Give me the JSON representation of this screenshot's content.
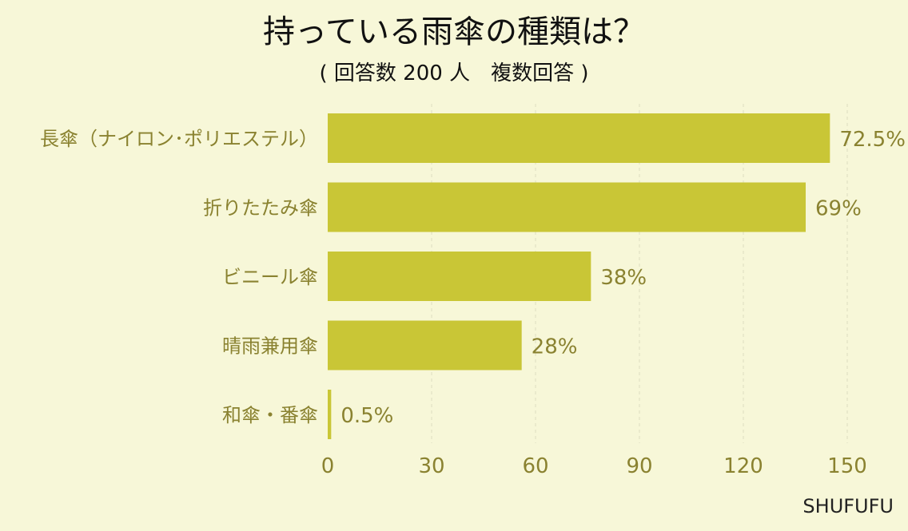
{
  "title": "持っている雨傘の種類は？",
  "subtitle": "( 回答数 200 人　複数回答 )",
  "source": "SHUFUFU",
  "colors": {
    "background": "#f7f7d8",
    "bar": "#c9c636",
    "label": "#8a8230",
    "grid": "#dcdcc0"
  },
  "chart_data": {
    "type": "bar",
    "orientation": "horizontal",
    "categories": [
      "長傘（ナイロン･ポリエステル）",
      "折りたたみ傘",
      "ビニール傘",
      "晴雨兼用傘",
      "和傘・番傘"
    ],
    "values": [
      145,
      138,
      76,
      56,
      1
    ],
    "data_labels": [
      "72.5%",
      "69%",
      "38%",
      "28%",
      "0.5%"
    ],
    "x_ticks": [
      0,
      30,
      60,
      90,
      120,
      150
    ],
    "xlim": [
      0,
      150
    ],
    "grid": true
  }
}
